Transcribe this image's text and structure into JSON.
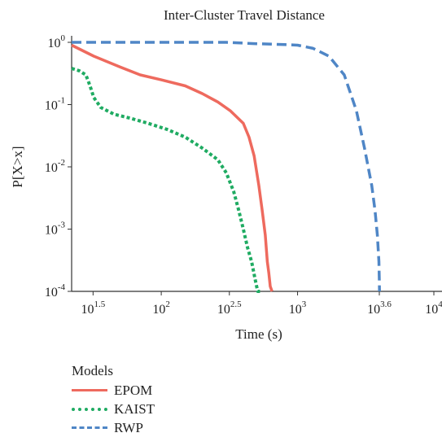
{
  "chart_data": {
    "type": "line",
    "title": "Inter-Cluster Travel Distance",
    "xlabel": "Time (s)",
    "ylabel": "P[X>x]",
    "x_scale": "log",
    "y_scale": "log",
    "xlim": [
      22,
      10000
    ],
    "ylim": [
      0.0001,
      1.0
    ],
    "grid": false,
    "x_ticks": [
      {
        "value": 31.6,
        "base": "10",
        "exp": "1.5"
      },
      {
        "value": 100,
        "base": "10",
        "exp": "2"
      },
      {
        "value": 316,
        "base": "10",
        "exp": "2.5"
      },
      {
        "value": 1000,
        "base": "10",
        "exp": "3"
      },
      {
        "value": 3980,
        "base": "10",
        "exp": "3.6"
      },
      {
        "value": 10000,
        "base": "10",
        "exp": "4"
      }
    ],
    "y_ticks": [
      {
        "value": 1,
        "base": "10",
        "exp": "0"
      },
      {
        "value": 0.1,
        "base": "10",
        "exp": "-1"
      },
      {
        "value": 0.01,
        "base": "10",
        "exp": "-2"
      },
      {
        "value": 0.001,
        "base": "10",
        "exp": "-3"
      },
      {
        "value": 0.0001,
        "base": "10",
        "exp": "-4"
      }
    ],
    "legend": {
      "title": "Models",
      "placement": "bottom-left"
    },
    "series": [
      {
        "name": "EPOM",
        "color": "#ee6a5e",
        "style": "solid",
        "x": [
          22,
          32,
          50,
          70,
          100,
          150,
          200,
          260,
          320,
          400,
          440,
          480,
          520,
          550,
          580,
          600,
          615,
          630,
          650
        ],
        "y": [
          0.9,
          0.6,
          0.4,
          0.3,
          0.25,
          0.2,
          0.15,
          0.11,
          0.08,
          0.05,
          0.03,
          0.015,
          0.005,
          0.002,
          0.0008,
          0.0003,
          0.0002,
          0.00012,
          0.0001
        ]
      },
      {
        "name": "KAIST",
        "color": "#1fab62",
        "style": "dotted",
        "x": [
          22,
          25,
          28,
          30,
          32,
          36,
          45,
          60,
          80,
          110,
          150,
          200,
          260,
          300,
          340,
          370,
          400,
          430,
          460,
          490,
          510,
          530
        ],
        "y": [
          0.38,
          0.35,
          0.3,
          0.2,
          0.13,
          0.09,
          0.07,
          0.06,
          0.05,
          0.04,
          0.03,
          0.02,
          0.013,
          0.008,
          0.004,
          0.002,
          0.001,
          0.0005,
          0.0003,
          0.00015,
          0.0001,
          0.0001
        ]
      },
      {
        "name": "RWP",
        "color": "#4f86c6",
        "style": "dashed",
        "x": [
          22,
          100,
          300,
          500,
          800,
          1000,
          1300,
          1700,
          2200,
          2700,
          3100,
          3500,
          3700,
          3850,
          3950,
          3980,
          3990
        ],
        "y": [
          1.0,
          1.0,
          1.0,
          0.95,
          0.92,
          0.9,
          0.8,
          0.6,
          0.3,
          0.08,
          0.02,
          0.005,
          0.002,
          0.0008,
          0.0003,
          0.00015,
          0.0001
        ]
      }
    ]
  }
}
